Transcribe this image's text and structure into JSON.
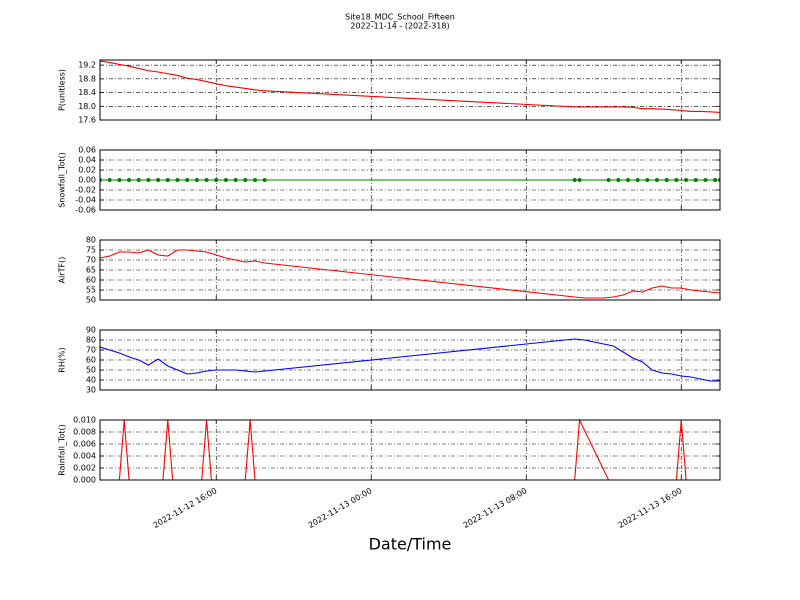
{
  "title": "Site18_MDC_School_Fifteen",
  "subtitle": "2022-11-14 - (2022-318)",
  "x_label": "Date/Time",
  "chart_data": [
    {
      "type": "line",
      "y_label": "P(unitless)",
      "ylim": [
        17.6,
        19.35
      ],
      "yticks": [
        17.6,
        {
          "value": 18,
          "label": "18.0"
        },
        18.4,
        18.8,
        19.2
      ],
      "grid": true,
      "x": [
        "2022-11-12 10:00",
        "2022-11-12 10:30",
        "2022-11-12 11:00",
        "2022-11-12 11:30",
        "2022-11-12 12:00",
        "2022-11-12 12:30",
        "2022-11-12 13:00",
        "2022-11-12 13:30",
        "2022-11-12 14:00",
        "2022-11-12 14:30",
        "2022-11-12 15:00",
        "2022-11-12 15:30",
        "2022-11-12 16:00",
        "2022-11-12 16:30",
        "2022-11-12 17:00",
        "2022-11-12 17:30",
        "2022-11-12 18:00",
        "2022-11-12 18:30",
        "2022-11-13 10:30",
        "2022-11-13 11:00",
        "2022-11-13 11:30",
        "2022-11-13 12:00",
        "2022-11-13 12:30",
        "2022-11-13 13:00",
        "2022-11-13 13:30",
        "2022-11-13 14:00",
        "2022-11-13 14:30",
        "2022-11-13 15:00",
        "2022-11-13 15:30",
        "2022-11-13 16:00",
        "2022-11-13 16:30",
        "2022-11-13 17:00",
        "2022-11-13 17:30",
        "2022-11-13 18:00"
      ],
      "series": [
        {
          "color": "#ff0000",
          "values": [
            19.32,
            19.28,
            19.22,
            19.17,
            19.1,
            19.04,
            19.0,
            18.95,
            18.9,
            18.82,
            18.78,
            18.72,
            18.66,
            18.6,
            18.56,
            18.52,
            18.48,
            18.45,
            17.98,
            17.98,
            17.98,
            17.98,
            17.98,
            17.98,
            17.97,
            17.93,
            17.93,
            17.92,
            17.9,
            17.88,
            17.85,
            17.85,
            17.84,
            17.82
          ]
        }
      ]
    },
    {
      "type": "line",
      "y_label": "Snowfall_Tot()",
      "ylim": [
        -0.06,
        0.06
      ],
      "yticks": [
        -0.06,
        -0.04,
        -0.02,
        {
          "value": 0,
          "label": "0.00"
        },
        0.02,
        0.04,
        0.06
      ],
      "grid": true,
      "marker": true,
      "x": [
        "2022-11-12 10:00",
        "2022-11-12 10:30",
        "2022-11-12 11:00",
        "2022-11-12 11:30",
        "2022-11-12 12:00",
        "2022-11-12 12:30",
        "2022-11-12 13:00",
        "2022-11-12 13:30",
        "2022-11-12 14:00",
        "2022-11-12 14:30",
        "2022-11-12 15:00",
        "2022-11-12 15:30",
        "2022-11-12 16:00",
        "2022-11-12 16:30",
        "2022-11-12 17:00",
        "2022-11-12 17:30",
        "2022-11-12 18:00",
        "2022-11-12 18:30",
        "2022-11-13 10:30",
        "2022-11-13 10:45",
        "2022-11-13 12:15",
        "2022-11-13 12:45",
        "2022-11-13 13:15",
        "2022-11-13 13:45",
        "2022-11-13 14:15",
        "2022-11-13 14:45",
        "2022-11-13 15:15",
        "2022-11-13 15:45",
        "2022-11-13 16:15",
        "2022-11-13 16:45",
        "2022-11-13 17:15",
        "2022-11-13 17:45",
        "2022-11-13 18:00"
      ],
      "series": [
        {
          "color": "#008000",
          "values": [
            0,
            0,
            0,
            0,
            0,
            0,
            0,
            0,
            0,
            0,
            0,
            0,
            0,
            0,
            0,
            0,
            0,
            0,
            0,
            0,
            0,
            0,
            0,
            0,
            0,
            0,
            0,
            0,
            0,
            0,
            0,
            0,
            0
          ]
        }
      ]
    },
    {
      "type": "line",
      "y_label": "AirTF()",
      "ylim": [
        50,
        80
      ],
      "yticks": [
        50,
        55,
        60,
        65,
        70,
        75,
        80
      ],
      "grid": true,
      "x": [
        "2022-11-12 10:00",
        "2022-11-12 10:30",
        "2022-11-12 11:00",
        "2022-11-12 11:30",
        "2022-11-12 12:00",
        "2022-11-12 12:30",
        "2022-11-12 13:00",
        "2022-11-12 13:30",
        "2022-11-12 14:00",
        "2022-11-12 14:30",
        "2022-11-12 15:00",
        "2022-11-12 15:30",
        "2022-11-12 16:00",
        "2022-11-12 16:30",
        "2022-11-12 17:00",
        "2022-11-12 17:30",
        "2022-11-12 18:00",
        "2022-11-12 18:30",
        "2022-11-13 10:30",
        "2022-11-13 11:00",
        "2022-11-13 11:30",
        "2022-11-13 12:00",
        "2022-11-13 12:30",
        "2022-11-13 13:00",
        "2022-11-13 13:30",
        "2022-11-13 14:00",
        "2022-11-13 14:30",
        "2022-11-13 15:00",
        "2022-11-13 15:30",
        "2022-11-13 16:00",
        "2022-11-13 16:30",
        "2022-11-13 17:00",
        "2022-11-13 17:30",
        "2022-11-13 18:00"
      ],
      "series": [
        {
          "color": "#ff0000",
          "values": [
            71,
            72,
            74,
            74,
            73.5,
            75,
            72.5,
            72,
            75,
            75,
            74.5,
            74,
            72.5,
            71,
            70,
            69,
            69.5,
            68.5,
            51.5,
            51,
            51,
            51,
            51.5,
            52.5,
            54.5,
            54,
            56,
            57,
            56,
            56,
            55,
            54.5,
            54,
            53.5
          ]
        }
      ]
    },
    {
      "type": "line",
      "y_label": "RH(%)",
      "ylim": [
        30,
        90
      ],
      "yticks": [
        30,
        40,
        50,
        60,
        70,
        80,
        90
      ],
      "grid": true,
      "x": [
        "2022-11-12 10:00",
        "2022-11-12 10:30",
        "2022-11-12 11:00",
        "2022-11-12 11:30",
        "2022-11-12 12:00",
        "2022-11-12 12:30",
        "2022-11-12 13:00",
        "2022-11-12 13:30",
        "2022-11-12 14:00",
        "2022-11-12 14:30",
        "2022-11-12 15:00",
        "2022-11-12 15:30",
        "2022-11-12 16:00",
        "2022-11-12 16:30",
        "2022-11-12 17:00",
        "2022-11-12 17:30",
        "2022-11-12 18:00",
        "2022-11-12 18:30",
        "2022-11-13 10:30",
        "2022-11-13 11:00",
        "2022-11-13 11:30",
        "2022-11-13 12:00",
        "2022-11-13 12:30",
        "2022-11-13 13:00",
        "2022-11-13 13:30",
        "2022-11-13 14:00",
        "2022-11-13 14:30",
        "2022-11-13 15:00",
        "2022-11-13 15:30",
        "2022-11-13 16:00",
        "2022-11-13 16:30",
        "2022-11-13 17:00",
        "2022-11-13 17:30",
        "2022-11-13 18:00"
      ],
      "series": [
        {
          "color": "#0000ff",
          "values": [
            73,
            70,
            67,
            63,
            60,
            55,
            61,
            54,
            50,
            46,
            47,
            49,
            50,
            50,
            50,
            49,
            48,
            49,
            81,
            80,
            78,
            76,
            74,
            68,
            62,
            58,
            50,
            47,
            46,
            44,
            43,
            41,
            39,
            39
          ]
        }
      ]
    },
    {
      "type": "line",
      "y_label": "Rainfall_Tot()",
      "ylim": [
        0,
        0.01
      ],
      "yticks": [
        {
          "value": 0,
          "label": "0.000"
        },
        0.002,
        0.004,
        0.006,
        0.008,
        {
          "value": 0.01,
          "label": "0.010"
        }
      ],
      "grid": true,
      "xlim": [
        "2022-11-12 10:00",
        "2022-11-13 18:00"
      ],
      "xticks": [
        "2022-11-12 16:00",
        "2022-11-13 00:00",
        "2022-11-13 08:00",
        "2022-11-13 16:00"
      ],
      "x": [
        "2022-11-12 10:00",
        "2022-11-12 11:00",
        "2022-11-12 11:15",
        "2022-11-12 11:30",
        "2022-11-12 13:15",
        "2022-11-12 13:30",
        "2022-11-12 13:45",
        "2022-11-12 15:15",
        "2022-11-12 15:30",
        "2022-11-12 15:45",
        "2022-11-12 17:30",
        "2022-11-12 17:45",
        "2022-11-12 18:00",
        "2022-11-12 18:30",
        "2022-11-13 10:30",
        "2022-11-13 10:45",
        "2022-11-13 12:15",
        "2022-11-13 15:45",
        "2022-11-13 16:00",
        "2022-11-13 16:15",
        "2022-11-13 18:00"
      ],
      "series": [
        {
          "color": "#ff0000",
          "values": [
            0,
            0,
            0.01,
            0,
            0,
            0.01,
            0,
            0,
            0.01,
            0,
            0,
            0.01,
            0,
            0,
            0,
            0.01,
            0,
            0,
            0.01,
            0,
            0
          ]
        }
      ]
    }
  ]
}
